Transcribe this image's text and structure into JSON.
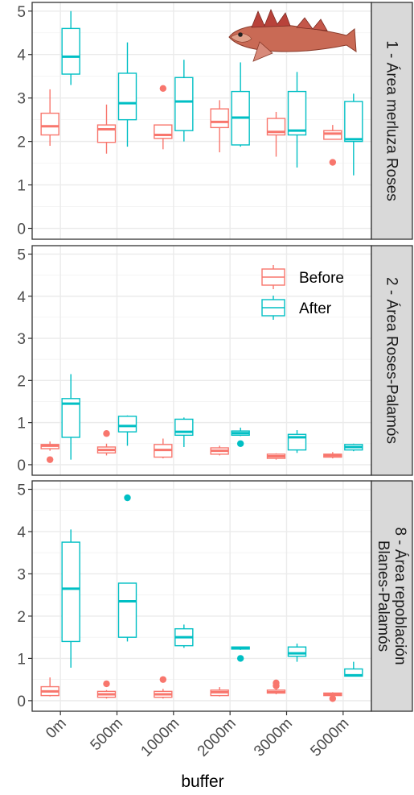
{
  "chart_data": {
    "type": "boxplot",
    "xlabel": "buffer",
    "categories": [
      "0m",
      "500m",
      "1000m",
      "2000m",
      "3000m",
      "5000m"
    ],
    "y_ticks": [
      0,
      1,
      2,
      3,
      4,
      5
    ],
    "colors": {
      "Before": "#F8766D",
      "After": "#00BFC4"
    },
    "legend": {
      "position": "top-right of panel 2",
      "entries": [
        "Before",
        "After"
      ]
    },
    "grid": true,
    "panels": [
      {
        "label": "1 - Área merluza Roses",
        "ylim": [
          -0.25,
          5.2
        ],
        "decoration": "fish-illustration",
        "series": [
          {
            "name": "Before",
            "boxes": [
              {
                "lo": 1.9,
                "q1": 2.15,
                "med": 2.35,
                "q3": 2.65,
                "hi": 3.2,
                "out": []
              },
              {
                "lo": 1.72,
                "q1": 1.98,
                "med": 2.28,
                "q3": 2.38,
                "hi": 2.85,
                "out": []
              },
              {
                "lo": 1.82,
                "q1": 2.07,
                "med": 2.15,
                "q3": 2.38,
                "hi": 2.38,
                "out": [
                  3.22
                ]
              },
              {
                "lo": 1.75,
                "q1": 2.32,
                "med": 2.45,
                "q3": 2.75,
                "hi": 2.95,
                "out": []
              },
              {
                "lo": 1.65,
                "q1": 2.15,
                "med": 2.22,
                "q3": 2.53,
                "hi": 2.68,
                "out": []
              },
              {
                "lo": 2.05,
                "q1": 2.05,
                "med": 2.18,
                "q3": 2.25,
                "hi": 2.38,
                "out": [
                  1.52
                ]
              }
            ]
          },
          {
            "name": "After",
            "boxes": [
              {
                "lo": 3.3,
                "q1": 3.55,
                "med": 3.95,
                "q3": 4.6,
                "hi": 5.0,
                "out": []
              },
              {
                "lo": 1.88,
                "q1": 2.5,
                "med": 2.88,
                "q3": 3.57,
                "hi": 4.28,
                "out": []
              },
              {
                "lo": 2.0,
                "q1": 2.25,
                "med": 2.92,
                "q3": 3.47,
                "hi": 3.88,
                "out": []
              },
              {
                "lo": 1.88,
                "q1": 1.92,
                "med": 2.55,
                "q3": 3.15,
                "hi": 3.82,
                "out": []
              },
              {
                "lo": 1.4,
                "q1": 2.15,
                "med": 2.25,
                "q3": 3.15,
                "hi": 3.6,
                "out": []
              },
              {
                "lo": 1.22,
                "q1": 2.0,
                "med": 2.05,
                "q3": 2.92,
                "hi": 3.1,
                "out": []
              }
            ]
          }
        ]
      },
      {
        "label": "2 - Área Roses-Palamós",
        "ylim": [
          -0.25,
          5.2
        ],
        "series": [
          {
            "name": "Before",
            "boxes": [
              {
                "lo": 0.33,
                "q1": 0.38,
                "med": 0.45,
                "q3": 0.48,
                "hi": 0.55,
                "out": [
                  0.12
                ]
              },
              {
                "lo": 0.22,
                "q1": 0.28,
                "med": 0.35,
                "q3": 0.42,
                "hi": 0.5,
                "out": [
                  0.74
                ]
              },
              {
                "lo": 0.15,
                "q1": 0.18,
                "med": 0.35,
                "q3": 0.48,
                "hi": 0.62,
                "out": []
              },
              {
                "lo": 0.22,
                "q1": 0.25,
                "med": 0.33,
                "q3": 0.4,
                "hi": 0.45,
                "out": []
              },
              {
                "lo": 0.12,
                "q1": 0.15,
                "med": 0.2,
                "q3": 0.25,
                "hi": 0.27,
                "out": []
              },
              {
                "lo": 0.15,
                "q1": 0.18,
                "med": 0.22,
                "q3": 0.25,
                "hi": 0.3,
                "out": []
              }
            ]
          },
          {
            "name": "After",
            "boxes": [
              {
                "lo": 0.12,
                "q1": 0.65,
                "med": 1.45,
                "q3": 1.57,
                "hi": 2.15,
                "out": []
              },
              {
                "lo": 0.45,
                "q1": 0.78,
                "med": 0.92,
                "q3": 1.15,
                "hi": 1.17,
                "out": []
              },
              {
                "lo": 0.42,
                "q1": 0.7,
                "med": 0.78,
                "q3": 1.08,
                "hi": 1.12,
                "out": []
              },
              {
                "lo": 0.68,
                "q1": 0.7,
                "med": 0.75,
                "q3": 0.8,
                "hi": 0.88,
                "out": [
                  0.5
                ]
              },
              {
                "lo": 0.28,
                "q1": 0.35,
                "med": 0.65,
                "q3": 0.72,
                "hi": 0.82,
                "out": []
              },
              {
                "lo": 0.32,
                "q1": 0.35,
                "med": 0.42,
                "q3": 0.48,
                "hi": 0.5,
                "out": []
              }
            ]
          }
        ]
      },
      {
        "label": "8 - Área repoblación Blanes-Palamós",
        "label_lines": [
          "8 - Área repoblación",
          "Blanes-Palamós"
        ],
        "ylim": [
          -0.25,
          5.2
        ],
        "series": [
          {
            "name": "Before",
            "boxes": [
              {
                "lo": 0.1,
                "q1": 0.12,
                "med": 0.22,
                "q3": 0.33,
                "hi": 0.55,
                "out": []
              },
              {
                "lo": 0.05,
                "q1": 0.08,
                "med": 0.15,
                "q3": 0.22,
                "hi": 0.25,
                "out": [
                  0.4
                ]
              },
              {
                "lo": 0.05,
                "q1": 0.08,
                "med": 0.15,
                "q3": 0.22,
                "hi": 0.28,
                "out": [
                  0.5
                ]
              },
              {
                "lo": 0.1,
                "q1": 0.12,
                "med": 0.2,
                "q3": 0.25,
                "hi": 0.32,
                "out": []
              },
              {
                "lo": 0.15,
                "q1": 0.18,
                "med": 0.2,
                "q3": 0.25,
                "hi": 0.28,
                "out": [
                  0.35,
                  0.42
                ]
              },
              {
                "lo": 0.1,
                "q1": 0.12,
                "med": 0.15,
                "q3": 0.18,
                "hi": 0.2,
                "out": [
                  0.05
                ]
              }
            ]
          },
          {
            "name": "After",
            "boxes": [
              {
                "lo": 0.78,
                "q1": 1.4,
                "med": 2.65,
                "q3": 3.75,
                "hi": 4.05,
                "out": []
              },
              {
                "lo": 1.4,
                "q1": 1.5,
                "med": 2.35,
                "q3": 2.78,
                "hi": 2.78,
                "out": [
                  4.8
                ]
              },
              {
                "lo": 1.25,
                "q1": 1.3,
                "med": 1.5,
                "q3": 1.7,
                "hi": 1.8,
                "out": []
              },
              {
                "lo": 1.2,
                "q1": 1.22,
                "med": 1.25,
                "q3": 1.27,
                "hi": 1.28,
                "out": [
                  1.0
                ]
              },
              {
                "lo": 0.92,
                "q1": 1.05,
                "med": 1.12,
                "q3": 1.27,
                "hi": 1.35,
                "out": []
              },
              {
                "lo": 0.58,
                "q1": 0.58,
                "med": 0.6,
                "q3": 0.75,
                "hi": 0.92,
                "out": []
              }
            ]
          }
        ]
      }
    ]
  }
}
